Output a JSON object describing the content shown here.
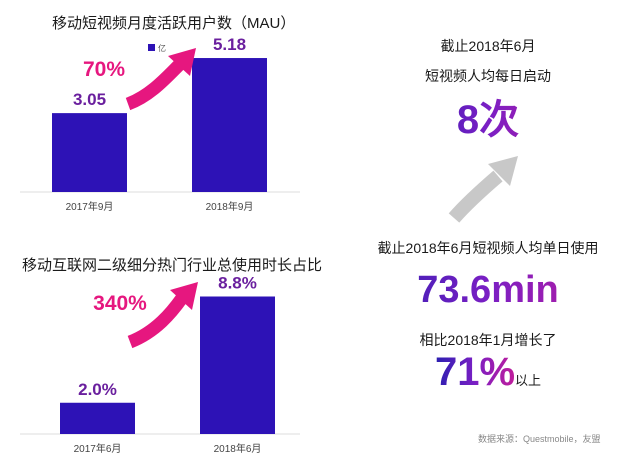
{
  "colors": {
    "bar": "#2d12b6",
    "growth_arrow": "#e6177f",
    "gray_arrow": "#c8c8c8",
    "value_label": "#6a1f9e",
    "growth_label": "#e6177f"
  },
  "chart_data": [
    {
      "type": "bar",
      "title": "移动短视频月度活跃用户数（MAU）",
      "legend": "亿",
      "legend_position": "top-center",
      "categories": [
        "2017年9月",
        "2018年9月"
      ],
      "values": [
        3.05,
        5.18
      ],
      "value_labels": [
        "3.05",
        "5.18"
      ],
      "growth_label": "70%",
      "ylim": [
        0,
        5.8
      ]
    },
    {
      "type": "bar",
      "title": "移动互联网二级细分热门行业总使用时长占比",
      "categories": [
        "2017年6月",
        "2018年6月"
      ],
      "values": [
        2.0,
        8.8
      ],
      "value_labels": [
        "2.0%",
        "8.8%"
      ],
      "growth_label": "340%",
      "ylim": [
        0,
        9.6
      ]
    }
  ],
  "stats": {
    "launch_line1": "截止2018年6月",
    "launch_line2": "短视频人均每日启动",
    "launch_value": "8次",
    "usage_label": "截止2018年6月短视频人均单日使用",
    "usage_value": "73.6min",
    "growth_label": "相比2018年1月增长了",
    "growth_value": "71%",
    "growth_suffix": "以上"
  },
  "source": "数据来源：Questmobile，友盟"
}
